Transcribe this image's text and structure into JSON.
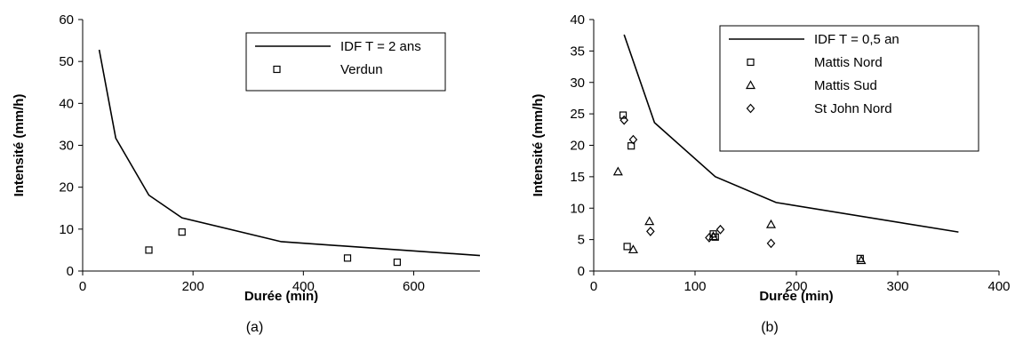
{
  "chart_data": [
    {
      "type": "line",
      "caption": "(a)",
      "xlabel": "Durée (min)",
      "ylabel": "Intensité (mm/h)",
      "xlim": [
        0,
        720
      ],
      "ylim": [
        0,
        60
      ],
      "xticks": [
        0,
        200,
        400,
        600
      ],
      "yticks": [
        0,
        10,
        20,
        30,
        40,
        50,
        60
      ],
      "grid": false,
      "legend_position": "top-right",
      "series": [
        {
          "name": "IDF T = 2 ans",
          "kind": "line",
          "color": "#000000",
          "x": [
            30,
            60,
            120,
            180,
            360,
            720
          ],
          "y": [
            52.8,
            31.7,
            18.1,
            12.7,
            7.0,
            3.7
          ]
        },
        {
          "name": "Verdun",
          "kind": "scatter",
          "marker": "square",
          "color": "#000000",
          "x": [
            120,
            180,
            480,
            570
          ],
          "y": [
            5.0,
            9.3,
            3.1,
            2.1
          ]
        }
      ]
    },
    {
      "type": "line",
      "caption": "(b)",
      "xlabel": "Durée (min)",
      "ylabel": "Intensité (mm/h)",
      "xlim": [
        0,
        400
      ],
      "ylim": [
        0,
        40
      ],
      "xticks": [
        0,
        100,
        200,
        300,
        400
      ],
      "yticks": [
        0,
        5,
        10,
        15,
        20,
        25,
        30,
        35,
        40
      ],
      "grid": false,
      "legend_position": "top-right",
      "series": [
        {
          "name": "IDF T = 0,5 an",
          "kind": "line",
          "color": "#000000",
          "x": [
            30,
            60,
            120,
            180,
            360
          ],
          "y": [
            37.6,
            23.6,
            15.0,
            10.9,
            6.2
          ]
        },
        {
          "name": "Mattis Nord",
          "kind": "scatter",
          "marker": "square",
          "color": "#000000",
          "x": [
            29,
            33,
            37,
            118,
            120,
            263
          ],
          "y": [
            24.8,
            3.9,
            19.9,
            5.9,
            5.4,
            2.0
          ]
        },
        {
          "name": "Mattis Sud",
          "kind": "scatter",
          "marker": "triangle",
          "color": "#000000",
          "x": [
            24,
            39,
            55,
            118,
            175,
            264
          ],
          "y": [
            15.8,
            3.4,
            7.9,
            5.5,
            7.4,
            1.7
          ]
        },
        {
          "name": "St John Nord",
          "kind": "scatter",
          "marker": "diamond",
          "color": "#000000",
          "x": [
            30,
            39,
            56,
            114,
            125,
            175
          ],
          "y": [
            24.0,
            20.9,
            6.3,
            5.3,
            6.6,
            4.4
          ]
        }
      ]
    }
  ]
}
